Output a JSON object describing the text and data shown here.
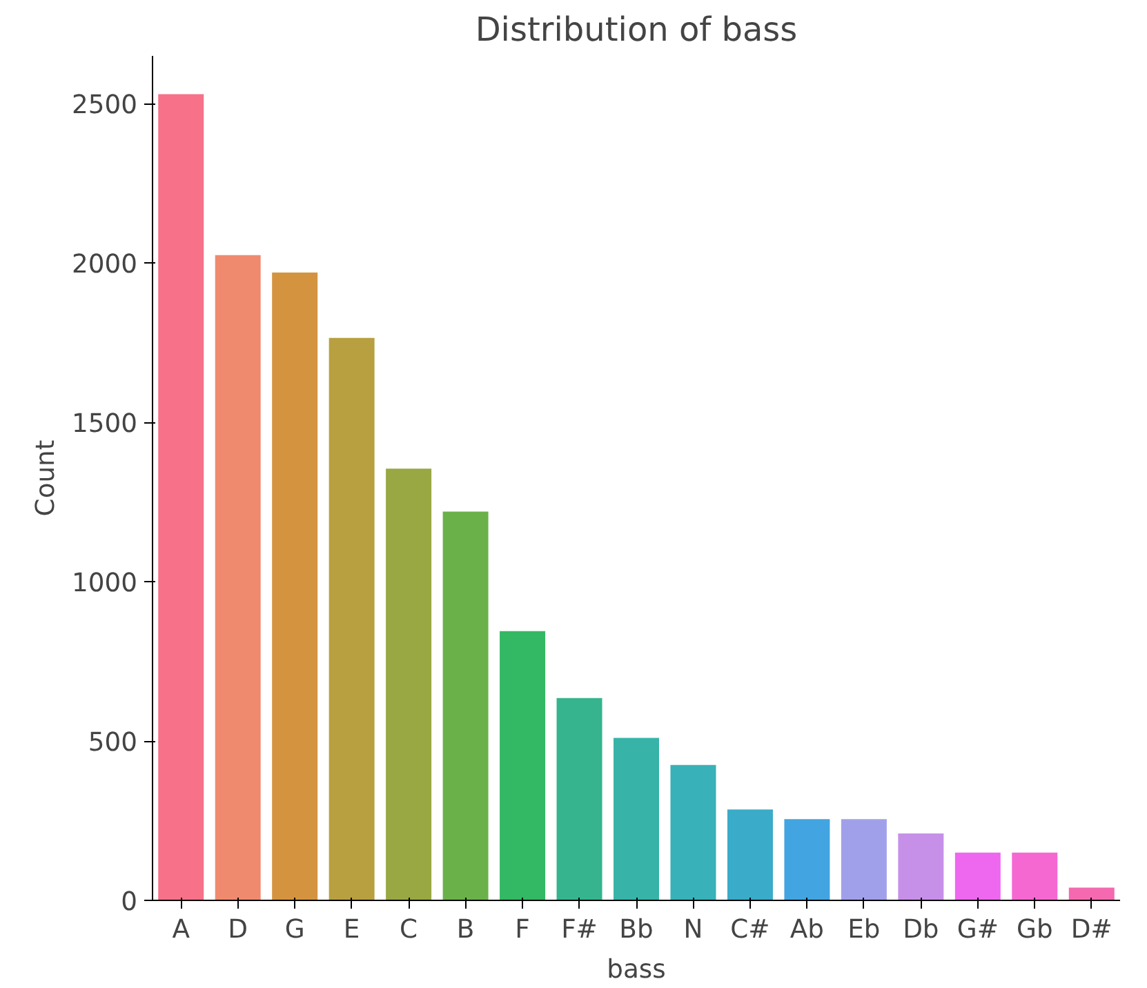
{
  "chart_data": {
    "type": "bar",
    "title": "Distribution of bass",
    "xlabel": "bass",
    "ylabel": "Count",
    "categories": [
      "A",
      "D",
      "G",
      "E",
      "C",
      "B",
      "F",
      "F#",
      "Bb",
      "N",
      "C#",
      "Ab",
      "Eb",
      "Db",
      "G#",
      "Gb",
      "D#"
    ],
    "values": [
      2530,
      2025,
      1970,
      1765,
      1355,
      1220,
      845,
      635,
      510,
      425,
      285,
      255,
      255,
      210,
      150,
      150,
      40
    ],
    "colors": [
      "#f77189",
      "#f08a6e",
      "#d4943f",
      "#b8a040",
      "#99a843",
      "#6bb14a",
      "#33b863",
      "#35b48e",
      "#37b3a8",
      "#38b1b8",
      "#3aabc8",
      "#42a4e0",
      "#a0a0ea",
      "#c690e9",
      "#ee67ef",
      "#f568d2",
      "#f569b0"
    ],
    "ylim": [
      0,
      2650
    ],
    "yticks": [
      0,
      500,
      1000,
      1500,
      2000,
      2500
    ],
    "grid": false
  }
}
